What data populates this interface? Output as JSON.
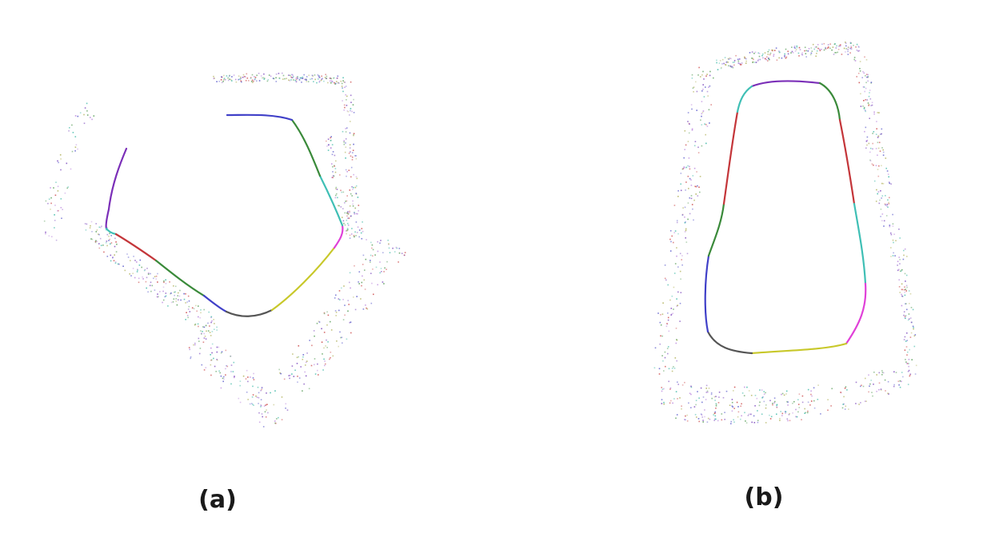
{
  "panels": [
    {
      "id": "a",
      "label": "(a)",
      "contour_colors": [
        "#7b2fb8",
        "#3fbfb5",
        "#c4363a",
        "#3a8a3a",
        "#4040c8",
        "#555555",
        "#c8c82a",
        "#e040d8"
      ],
      "scatter_colors": [
        "#8a5cc4",
        "#52c0b0",
        "#d05a5a",
        "#6aa86a",
        "#6a6ad0",
        "#b8b86a",
        "#c090e0"
      ]
    },
    {
      "id": "b",
      "label": "(b)",
      "contour_colors": [
        "#7b2fb8",
        "#3fbfb5",
        "#c4363a",
        "#3a8a3a",
        "#4040c8",
        "#555555",
        "#c8c82a",
        "#e040d8"
      ],
      "scatter_colors": [
        "#8a5cc4",
        "#52c0b0",
        "#d05a5a",
        "#6aa86a",
        "#6a6ad0",
        "#b8b86a",
        "#c090e0"
      ]
    }
  ]
}
